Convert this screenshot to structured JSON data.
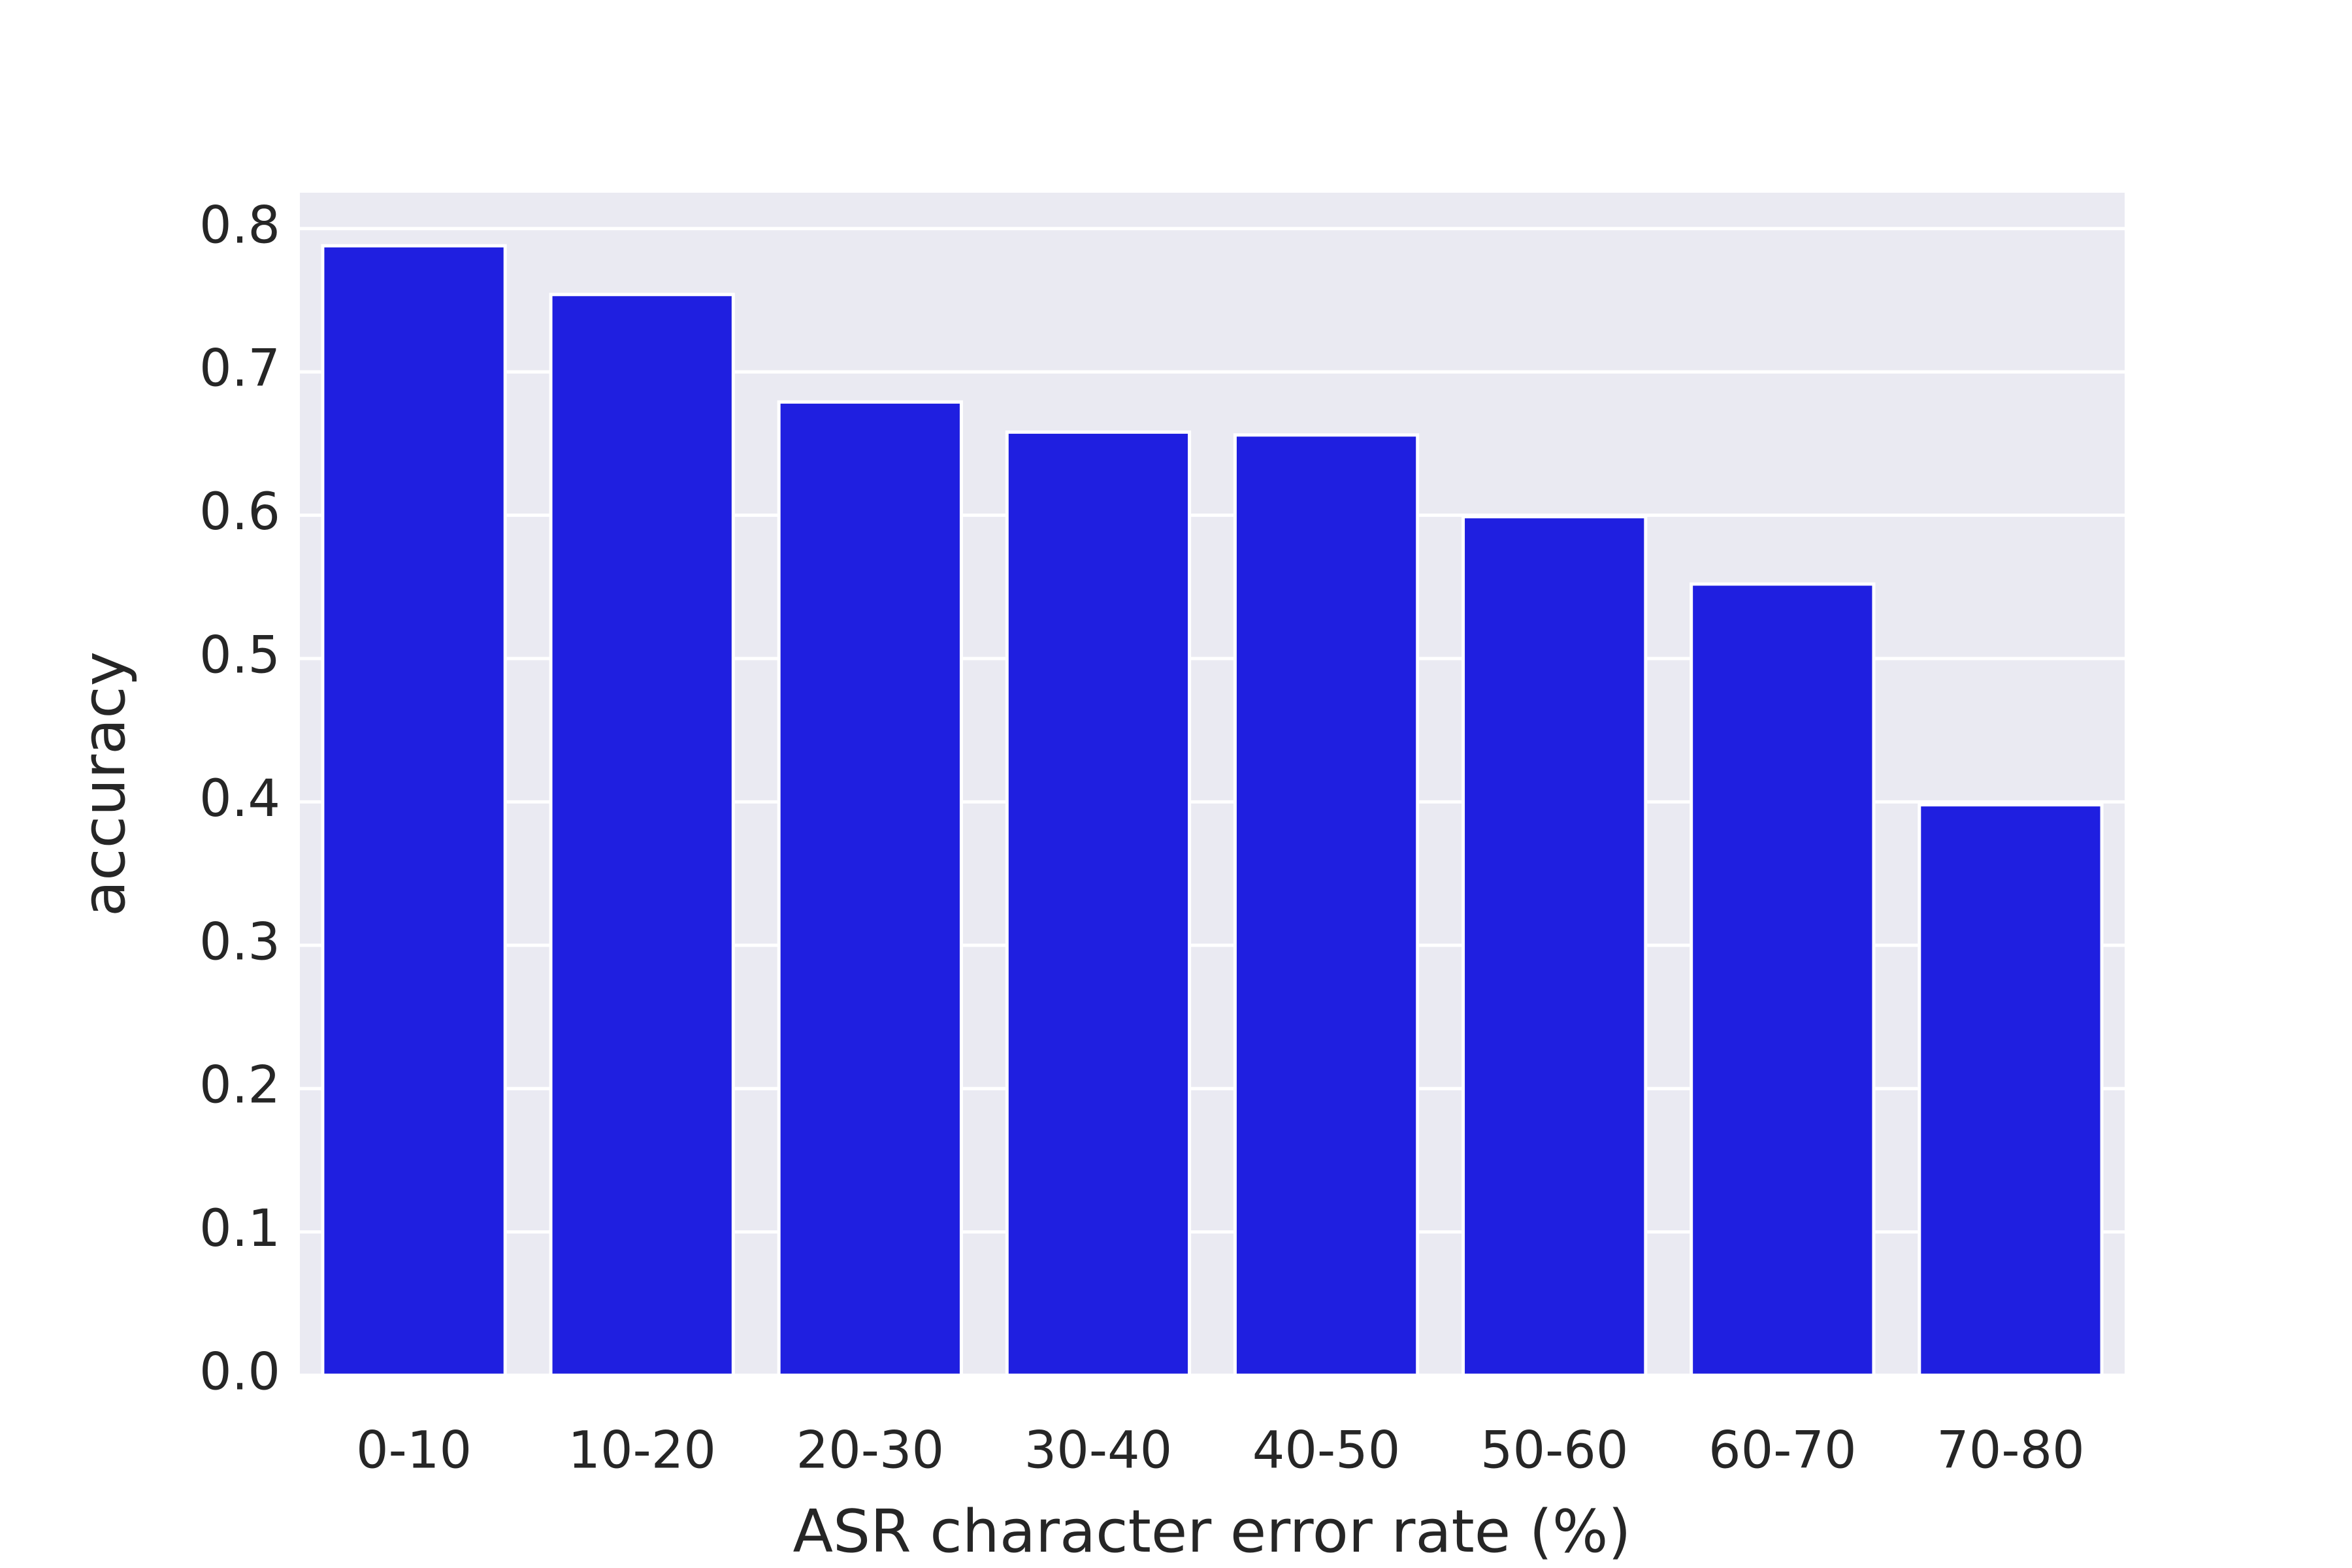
{
  "chart_data": {
    "type": "bar",
    "xlabel": "ASR character error rate (%)",
    "ylabel": "accuracy",
    "categories": [
      "0-10",
      "10-20",
      "20-30",
      "30-40",
      "40-50",
      "50-60",
      "60-70",
      "70-80"
    ],
    "values": [
      0.788,
      0.754,
      0.679,
      0.658,
      0.656,
      0.599,
      0.552,
      0.398
    ],
    "color": "#1f1fe0",
    "ylim": [
      0,
      0.825
    ],
    "yticks": [
      {
        "value": 0,
        "label": "0.0"
      },
      0.1,
      0.2,
      0.3,
      0.4,
      0.5,
      0.6,
      0.7,
      0.8
    ],
    "grid": true
  }
}
